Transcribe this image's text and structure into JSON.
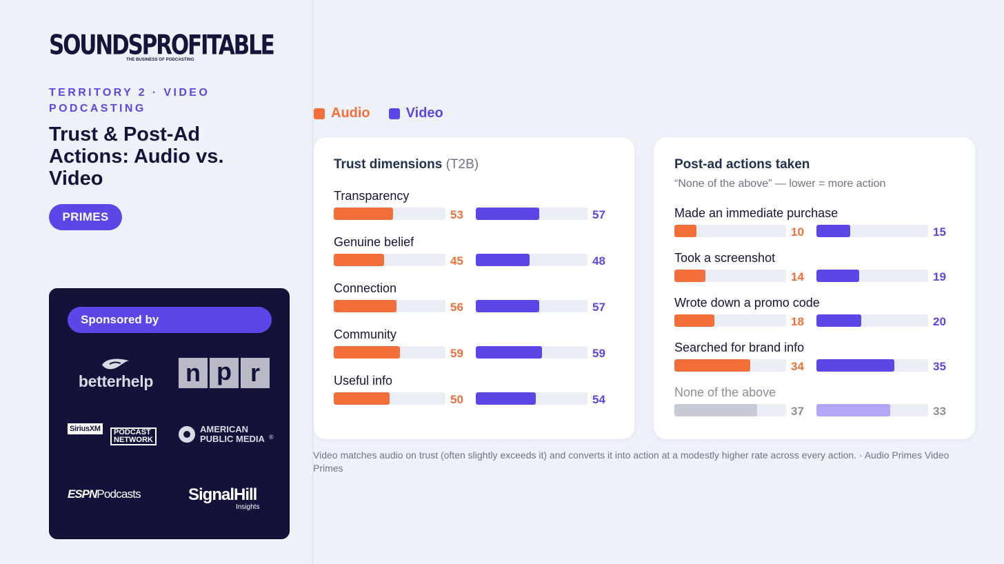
{
  "brand": {
    "name": "SOUNDSPROFITABLE",
    "tagline": "THE BUSINESS OF PODCASTING"
  },
  "eyebrow": "TERRITORY 2 · VIDEO PODCASTING",
  "title": "Trust & Post-Ad Actions: Audio vs. Video",
  "segment_pill": "PRIMES",
  "sponsor": {
    "heading": "Sponsored by",
    "logos": {
      "betterhelp": "betterhelp",
      "npr": [
        "n",
        "p",
        "r"
      ],
      "siriusxm_a": "SiriusXM",
      "siriusxm_b": "PODCAST",
      "siriusxm_c": "NETWORK",
      "apm_a": "AMERICAN",
      "apm_b": "PUBLIC MEDIA",
      "apm_reg": "®",
      "espn_a": "ESPN",
      "espn_b": "Podcasts",
      "signalhill_a": "SignalHill",
      "signalhill_b": "Insights"
    }
  },
  "legend": [
    {
      "label": "Audio",
      "color": "#f26f3a"
    },
    {
      "label": "Video",
      "color": "#5b46e8"
    }
  ],
  "colors": {
    "audio": "#f26f3a",
    "video": "#5b46e8",
    "muted_audio": "#c8cbd6",
    "muted_video": "#b3a7f5",
    "muted_text": "#8b8d9c"
  },
  "chart_data": [
    {
      "type": "bar",
      "title": "Trust dimensions",
      "title_suffix": "(T2B)",
      "categories": [
        "Transparency",
        "Genuine belief",
        "Connection",
        "Community",
        "Useful info"
      ],
      "series": [
        {
          "name": "Audio",
          "values": [
            53,
            45,
            56,
            59,
            50
          ]
        },
        {
          "name": "Video",
          "values": [
            57,
            48,
            57,
            59,
            54
          ]
        }
      ],
      "ylim": [
        0,
        100
      ]
    },
    {
      "type": "bar",
      "title": "Post-ad actions taken",
      "subtitle": "“None of the above” — lower = more action",
      "categories": [
        "Made an immediate purchase",
        "Took a screenshot",
        "Wrote down a promo code",
        "Searched for brand info",
        "None of the above"
      ],
      "muted_categories": [
        "None of the above"
      ],
      "series": [
        {
          "name": "Audio",
          "values": [
            10,
            14,
            18,
            34,
            37
          ]
        },
        {
          "name": "Video",
          "values": [
            15,
            19,
            20,
            35,
            33
          ]
        }
      ],
      "ylim": [
        0,
        50
      ]
    }
  ],
  "footnote": "Video matches audio on trust (often slightly exceeds it) and converts it into action at a modestly higher rate across every action. · Audio Primes Video Primes"
}
